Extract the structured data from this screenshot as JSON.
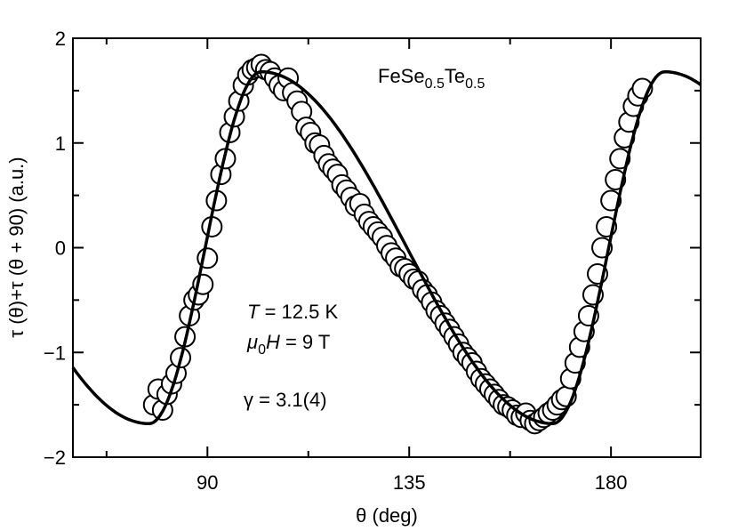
{
  "chart_data": {
    "type": "scatter",
    "xlabel": "θ (deg)",
    "ylabel": "τ (θ)+τ (θ + 90) (a.u.)",
    "xlim": [
      60,
      200
    ],
    "ylim": [
      -2,
      2
    ],
    "x_ticks": [
      90,
      135,
      180
    ],
    "y_ticks": [
      2,
      1,
      0,
      -1,
      -2
    ],
    "x_tick_labels": [
      "90",
      "135",
      "180"
    ],
    "y_tick_labels": [
      "2",
      "1",
      "0",
      "−1",
      "−2"
    ],
    "grid": false,
    "annotations": {
      "material_base": "FeSe",
      "material_sub1": "0.5",
      "material_mid": "Te",
      "material_sub2": "0.5",
      "temp_var": "T",
      "temp_val": " = 12.5 K",
      "field_mu": "μ",
      "field_sub": "0",
      "field_var": "H",
      "field_val": " = 9 T",
      "gamma": "γ = 3.1(4)"
    },
    "fit_curve": {
      "amplitude": 1.68,
      "period_deg": 90,
      "phase_deg": 77,
      "x_range": [
        60,
        200
      ]
    },
    "series": [
      {
        "marker": "open-circle",
        "x": [
          78,
          79,
          80,
          81,
          82,
          83,
          84,
          85,
          86,
          87,
          88,
          89,
          90,
          91,
          92,
          93,
          94,
          95,
          96,
          97,
          98,
          99,
          100,
          101,
          102,
          103,
          104,
          105,
          106,
          107,
          108,
          109,
          110,
          111,
          112,
          113,
          114,
          115,
          116,
          117,
          118,
          119,
          120,
          121,
          122,
          123,
          124,
          125,
          126,
          127,
          128,
          129,
          130,
          131,
          132,
          133,
          134,
          135,
          136,
          137,
          138,
          139,
          140,
          141,
          142,
          143,
          144,
          145,
          146,
          147,
          148,
          149,
          150,
          151,
          152,
          153,
          154,
          155,
          156,
          157,
          158,
          159,
          160,
          161,
          162,
          163,
          164,
          165,
          166,
          167,
          168,
          169,
          170,
          171,
          172,
          173,
          174,
          175,
          176,
          177,
          178,
          179,
          180,
          181,
          182,
          183,
          184,
          185,
          186,
          187
        ],
        "y": [
          -1.5,
          -1.35,
          -1.55,
          -1.4,
          -1.3,
          -1.2,
          -1.05,
          -0.85,
          -0.65,
          -0.5,
          -0.45,
          -0.35,
          -0.1,
          0.2,
          0.45,
          0.7,
          0.85,
          1.1,
          1.25,
          1.4,
          1.55,
          1.65,
          1.7,
          1.72,
          1.75,
          1.7,
          1.68,
          1.62,
          1.55,
          1.5,
          1.62,
          1.48,
          1.4,
          1.3,
          1.15,
          1.1,
          1.0,
          0.98,
          0.88,
          0.8,
          0.75,
          0.7,
          0.6,
          0.55,
          0.48,
          0.4,
          0.42,
          0.32,
          0.25,
          0.2,
          0.15,
          0.1,
          0.02,
          -0.05,
          -0.1,
          -0.18,
          -0.2,
          -0.25,
          -0.3,
          -0.32,
          -0.4,
          -0.45,
          -0.52,
          -0.6,
          -0.65,
          -0.72,
          -0.78,
          -0.85,
          -0.92,
          -1.0,
          -1.05,
          -1.1,
          -1.18,
          -1.25,
          -1.3,
          -1.35,
          -1.4,
          -1.45,
          -1.5,
          -1.52,
          -1.55,
          -1.6,
          -1.62,
          -1.58,
          -1.65,
          -1.68,
          -1.65,
          -1.62,
          -1.58,
          -1.55,
          -1.5,
          -1.45,
          -1.42,
          -1.25,
          -1.1,
          -0.95,
          -0.8,
          -0.65,
          -0.45,
          -0.25,
          0.0,
          0.2,
          0.45,
          0.65,
          0.85,
          1.05,
          1.2,
          1.35,
          1.45,
          1.52
        ]
      }
    ]
  }
}
